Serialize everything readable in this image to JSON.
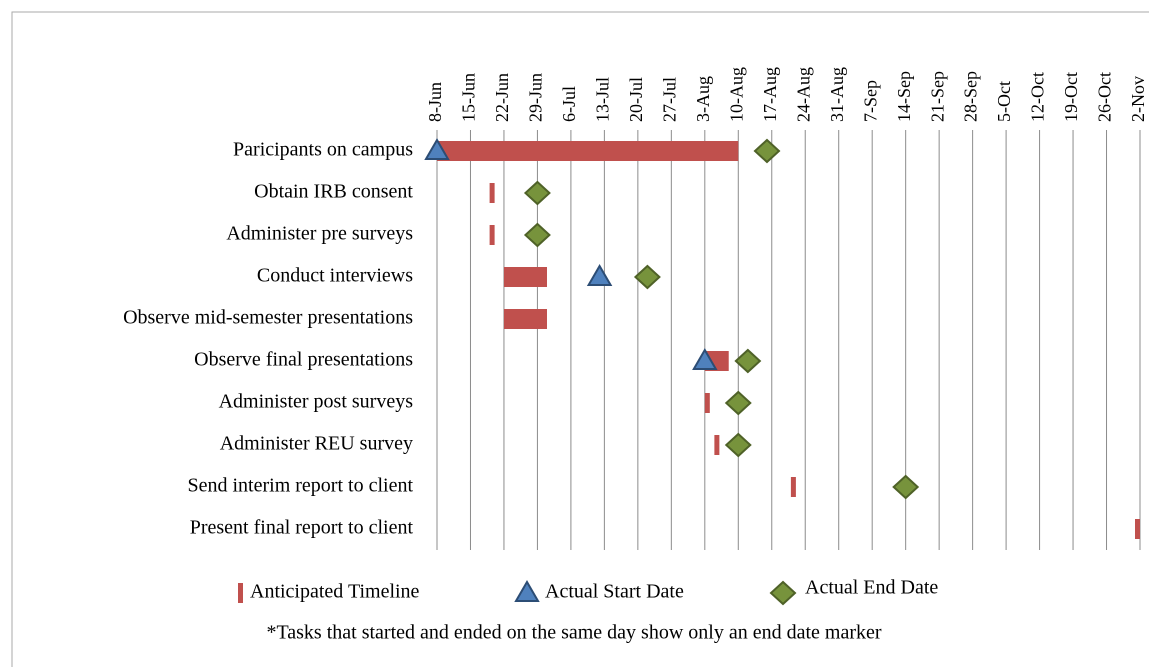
{
  "chart_data": {
    "type": "gantt",
    "categories": [
      "Paricipants on campus",
      "Obtain IRB consent",
      "Administer pre surveys",
      "Conduct interviews",
      "Observe mid-semester presentations",
      "Observe final presentations",
      "Administer post surveys",
      "Administer REU survey",
      "Send interim report to client",
      "Present final report to client"
    ],
    "series": [
      {
        "name": "Anticipated Timeline",
        "color": "#c0504d",
        "start": [
          0,
          11,
          11,
          14,
          14,
          56,
          56,
          58,
          74,
          147
        ],
        "duration": [
          63,
          1,
          1,
          9,
          9,
          5,
          1,
          1,
          1,
          1
        ]
      },
      {
        "name": "Actual Start Date",
        "color": "#4f81bd",
        "values": [
          0,
          null,
          null,
          34,
          null,
          56,
          null,
          null,
          null,
          null
        ]
      },
      {
        "name": "Actual End Date",
        "color": "#77933c",
        "values": [
          69,
          21,
          21,
          44,
          null,
          65,
          63,
          63,
          98,
          null
        ]
      }
    ],
    "xlim": [
      0,
      147
    ],
    "xticks": [
      {
        "value": 0,
        "label": "8-Jun"
      },
      {
        "value": 7,
        "label": "15-Jun"
      },
      {
        "value": 14,
        "label": "22-Jun"
      },
      {
        "value": 21,
        "label": "29-Jun"
      },
      {
        "value": 28,
        "label": "6-Jul"
      },
      {
        "value": 35,
        "label": "13-Jul"
      },
      {
        "value": 42,
        "label": "20-Jul"
      },
      {
        "value": 49,
        "label": "27-Jul"
      },
      {
        "value": 56,
        "label": "3-Aug"
      },
      {
        "value": 63,
        "label": "10-Aug"
      },
      {
        "value": 70,
        "label": "17-Aug"
      },
      {
        "value": 77,
        "label": "24-Aug"
      },
      {
        "value": 84,
        "label": "31-Aug"
      },
      {
        "value": 91,
        "label": "7-Sep"
      },
      {
        "value": 98,
        "label": "14-Sep"
      },
      {
        "value": 105,
        "label": "21-Sep"
      },
      {
        "value": 112,
        "label": "28-Sep"
      },
      {
        "value": 119,
        "label": "5-Oct"
      },
      {
        "value": 126,
        "label": "12-Oct"
      },
      {
        "value": 133,
        "label": "19-Oct"
      },
      {
        "value": 140,
        "label": "26-Oct"
      },
      {
        "value": 147,
        "label": "2-Nov"
      }
    ],
    "grid": true,
    "note": "*Tasks that started and ended on the same day show only an end date marker"
  }
}
